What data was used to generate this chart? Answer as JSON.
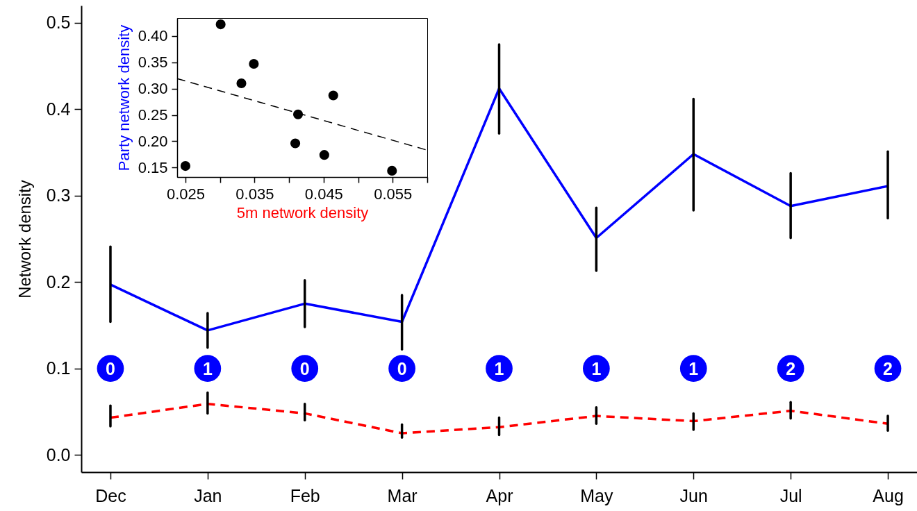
{
  "chart_data": [
    {
      "type": "line",
      "ylabel": "Network density",
      "categories": [
        "Dec",
        "Jan",
        "Feb",
        "Mar",
        "Apr",
        "May",
        "Jun",
        "Jul",
        "Aug"
      ],
      "ylim": [
        -0.02,
        0.52
      ],
      "yticks": [
        {
          "value": 0,
          "label": "0.0"
        },
        0.1,
        0.2,
        0.3,
        0.4,
        0.5
      ],
      "marker": "none",
      "series": [
        {
          "color": "#0000ff",
          "line_style": "solid",
          "values": [
            0.197,
            0.144,
            0.175,
            0.154,
            0.424,
            0.251,
            0.348,
            0.288,
            0.311
          ],
          "errors": [
            [
              0.154,
              0.241
            ],
            [
              0.124,
              0.164
            ],
            [
              0.148,
              0.202
            ],
            [
              0.122,
              0.185
            ],
            [
              0.372,
              0.475
            ],
            [
              0.213,
              0.286
            ],
            [
              0.283,
              0.412
            ],
            [
              0.251,
              0.326
            ],
            [
              0.274,
              0.351
            ]
          ]
        },
        {
          "color": "#ff0000",
          "line_style": "dashed",
          "values": [
            0.043,
            0.059,
            0.048,
            0.025,
            0.032,
            0.045,
            0.039,
            0.051,
            0.036
          ],
          "errors": [
            [
              0.033,
              0.057
            ],
            [
              0.048,
              0.072
            ],
            [
              0.04,
              0.059
            ],
            [
              0.02,
              0.035
            ],
            [
              0.023,
              0.043
            ],
            [
              0.036,
              0.055
            ],
            [
              0.029,
              0.048
            ],
            [
              0.042,
              0.061
            ],
            [
              0.028,
              0.045
            ]
          ]
        }
      ],
      "annotations": [
        {
          "text": "0",
          "x": "Dec",
          "y": 0.1
        },
        {
          "text": "1",
          "x": "Jan",
          "y": 0.1
        },
        {
          "text": "0",
          "x": "Feb",
          "y": 0.1
        },
        {
          "text": "0",
          "x": "Mar",
          "y": 0.1
        },
        {
          "text": "1",
          "x": "Apr",
          "y": 0.1
        },
        {
          "text": "1",
          "x": "May",
          "y": 0.1
        },
        {
          "text": "1",
          "x": "Jun",
          "y": 0.1
        },
        {
          "text": "2",
          "x": "Jul",
          "y": 0.1
        },
        {
          "text": "2",
          "x": "Aug",
          "y": 0.1
        }
      ]
    },
    {
      "type": "scatter",
      "xlabel": "5m network density",
      "ylabel": "Party network density",
      "xlim": [
        0.0238,
        0.06
      ],
      "ylim": [
        0.132,
        0.434
      ],
      "xticks": [
        0.025,
        {
          "value": 0.03,
          "label": null
        },
        0.035,
        {
          "value": 0.04,
          "label": null
        },
        0.045,
        {
          "value": 0.05,
          "label": null
        },
        0.055,
        {
          "value": 0.06,
          "label": null
        }
      ],
      "yticks": [
        0.15,
        {
          "value": 0.2,
          "label": "0.20"
        },
        0.25,
        {
          "value": 0.3,
          "label": "0.30"
        },
        0.35,
        {
          "value": 0.4,
          "label": "0.40"
        }
      ],
      "marker": "circle",
      "series": [
        {
          "color": "#000000",
          "x": [
            0.025,
            0.0301,
            0.0349,
            0.0331,
            0.0413,
            0.0409,
            0.0451,
            0.0464,
            0.0549
          ],
          "values": [
            0.153,
            0.422,
            0.347,
            0.31,
            0.251,
            0.196,
            0.174,
            0.287,
            0.144
          ]
        },
        {
          "type": "line",
          "color": "#000000",
          "line_style": "dashed",
          "marker": "none",
          "x": [
            0.0238,
            0.06
          ],
          "values": [
            0.319,
            0.183
          ]
        }
      ]
    }
  ]
}
